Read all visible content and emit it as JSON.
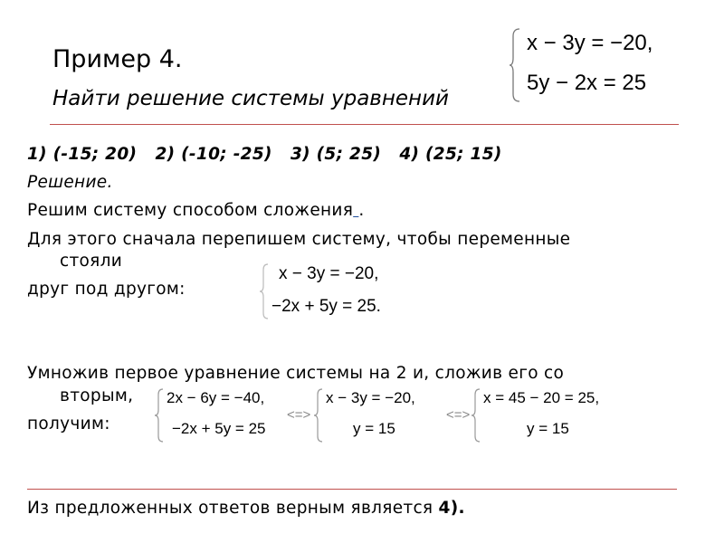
{
  "title": "Пример 4.",
  "subtitle": "Найти решение системы уравнений",
  "header_system": [
    "x − 3y = −20,",
    "5y − 2x = 25"
  ],
  "answers": "1) (-15; 20)   2) (-10; -25)   3) (5; 25)   4) (25; 15)",
  "solution_label": "Решение.",
  "line_method": "Решим систему способом сложения",
  "line_method_link": " ",
  "line_method_end": ".",
  "line_rewrite_1": "Для этого сначала перепишем систему, чтобы переменные",
  "line_rewrite_2": "стояли",
  "line_rewrite_3": "друг под другом:",
  "rewritten_system": [
    "x − 3y = −20,",
    "−2x + 5y = 25."
  ],
  "line_multiply_1": "Умножив первое уравнение системы на 2 и, сложив его со",
  "line_multiply_2": "вторым,",
  "line_multiply_3": "получим:",
  "step_systems": [
    [
      "2x − 6y = −40,",
      "−2x + 5y = 25"
    ],
    [
      "x − 3y = −20,",
      "y = 15"
    ],
    [
      "x = 45 − 20 = 25,",
      "y = 15"
    ]
  ],
  "equiv_symbol": "<=>",
  "conclusion": "Из предложенных ответов верным является ",
  "conclusion_answer": "4).",
  "colors": {
    "rule": "#c0504d",
    "link": "#1f4e9c"
  }
}
